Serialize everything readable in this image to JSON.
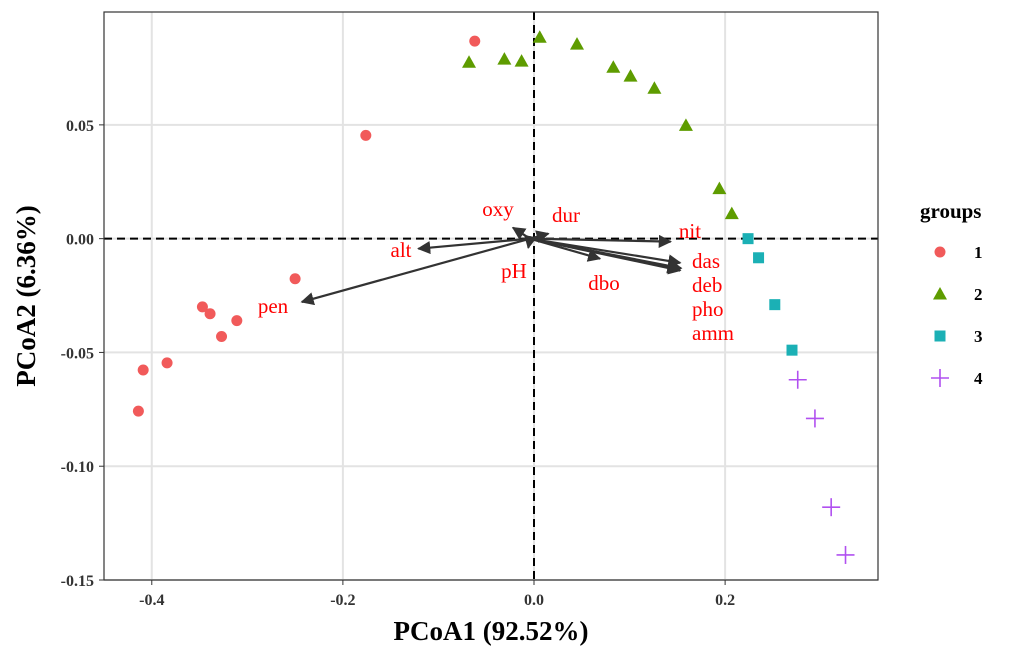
{
  "chart_data": {
    "type": "scatter",
    "title": "",
    "xlabel": "PCoA1 (92.52%)",
    "ylabel": "PCoA2 (6.36%)",
    "xlim": [
      -0.45,
      0.36
    ],
    "ylim": [
      -0.15,
      0.0996
    ],
    "xticks": [
      -0.4,
      -0.2,
      0.0,
      0.2
    ],
    "xtick_labels": [
      "-0.4",
      "-0.2",
      "0.0",
      "0.2"
    ],
    "yticks": [
      -0.15,
      -0.1,
      -0.05,
      0.0,
      0.05
    ],
    "ytick_labels": [
      "-0.15",
      "-0.10",
      "-0.05",
      "0.00",
      "0.05"
    ],
    "grid": true,
    "reference_lines": {
      "x": 0,
      "y": 0,
      "style": "dashed"
    },
    "legend": {
      "title": "groups",
      "position": "right"
    },
    "series": [
      {
        "name": "1",
        "marker": "circle",
        "color": "#F15A5A",
        "x": [
          -0.062,
          -0.176,
          -0.25,
          -0.347,
          -0.339,
          -0.311,
          -0.327,
          -0.384,
          -0.409,
          -0.414
        ],
        "y": [
          0.0868,
          0.0454,
          -0.0176,
          -0.03,
          -0.033,
          -0.036,
          -0.043,
          -0.0546,
          -0.0577,
          -0.0758
        ]
      },
      {
        "name": "2",
        "marker": "triangle",
        "color": "#5E9C00",
        "x": [
          -0.068,
          -0.031,
          -0.013,
          0.006,
          0.045,
          0.083,
          0.101,
          0.126,
          0.159,
          0.194,
          0.207
        ],
        "y": [
          0.0775,
          0.0789,
          0.078,
          0.0885,
          0.0855,
          0.0753,
          0.0714,
          0.0661,
          0.0498,
          0.022,
          0.011
        ]
      },
      {
        "name": "3",
        "marker": "square",
        "color": "#1BB0B5",
        "x": [
          0.224,
          0.235,
          0.252,
          0.27
        ],
        "y": [
          0.0,
          -0.0084,
          -0.029,
          -0.049
        ]
      },
      {
        "name": "4",
        "marker": "plus",
        "color": "#B150F0",
        "x": [
          0.276,
          0.294,
          0.311,
          0.326
        ],
        "y": [
          -0.062,
          -0.079,
          -0.118,
          -0.139
        ]
      }
    ],
    "vectors": [
      {
        "label": "alt",
        "x": -0.121,
        "y": -0.0044
      },
      {
        "label": "pen",
        "x": -0.243,
        "y": -0.0278
      },
      {
        "label": "oxy",
        "x": -0.022,
        "y": 0.0048
      },
      {
        "label": "pH",
        "x": -0.006,
        "y": -0.004
      },
      {
        "label": "dur",
        "x": 0.015,
        "y": 0.0022
      },
      {
        "label": "nit",
        "x": 0.143,
        "y": -0.0013
      },
      {
        "label": "dbo",
        "x": 0.069,
        "y": -0.0088
      },
      {
        "label": "das",
        "x": 0.153,
        "y": -0.0106
      },
      {
        "label": "deb",
        "x": 0.152,
        "y": -0.0135
      },
      {
        "label": "pho",
        "x": 0.153,
        "y": -0.014
      },
      {
        "label": "amm",
        "x": 0.154,
        "y": -0.013
      }
    ],
    "vector_color": "#333333",
    "vector_label_color": "#FF0000"
  }
}
